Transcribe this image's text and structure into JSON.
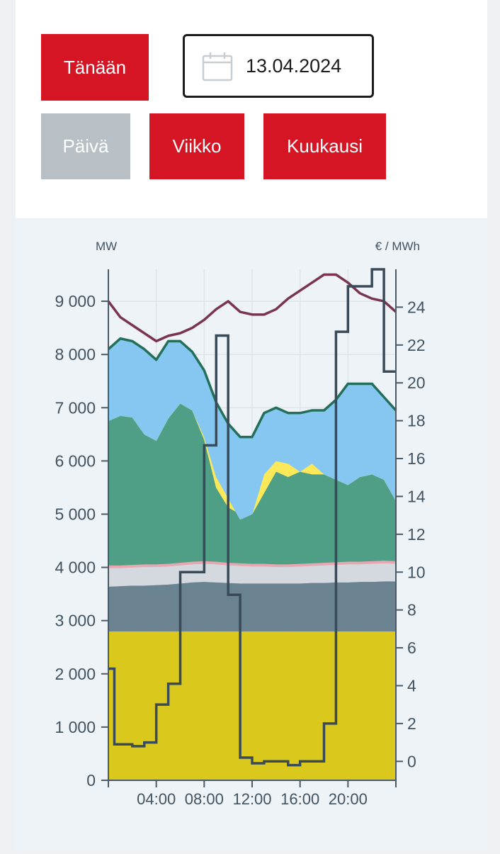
{
  "controls": {
    "today_label": "Tänään",
    "date_value": "13.04.2024",
    "calendar_icon": "calendar-icon",
    "ranges": [
      {
        "label": "Päivä",
        "active": false
      },
      {
        "label": "Viikko",
        "active": true
      },
      {
        "label": "Kuukausi",
        "active": true
      }
    ]
  },
  "colors": {
    "button_red": "#d51523",
    "button_grey": "#b8c0c6",
    "nuclear": "#dbc81c",
    "chp": "#6b8290",
    "industry": "#d3d9de",
    "other": "#e6a7b0",
    "hydro": "#4f9e86",
    "solar": "#fbe95a",
    "wind": "#86c7f2",
    "consumption": "#246f5a",
    "consumption_total": "#7a3453",
    "price": "#394b59"
  },
  "chart_data": {
    "type": "area",
    "left_unit": "MW",
    "right_unit": "€ / MWh",
    "left_ylim": [
      0,
      9600
    ],
    "right_ylim": [
      -1,
      26
    ],
    "left_ticks": [
      "0",
      "1 000",
      "2 000",
      "3 000",
      "4 000",
      "5 000",
      "6 000",
      "7 000",
      "8 000",
      "9 000"
    ],
    "left_tick_values": [
      0,
      1000,
      2000,
      3000,
      4000,
      5000,
      6000,
      7000,
      8000,
      9000
    ],
    "right_ticks": [
      "0",
      "2",
      "4",
      "6",
      "8",
      "10",
      "12",
      "14",
      "16",
      "18",
      "20",
      "22",
      "24"
    ],
    "right_tick_values": [
      0,
      2,
      4,
      6,
      8,
      10,
      12,
      14,
      16,
      18,
      20,
      22,
      24
    ],
    "xlim": [
      0,
      24
    ],
    "x_ticks": [
      "04:00",
      "08:00",
      "12:00",
      "16:00",
      "20:00"
    ],
    "x_tick_values": [
      4,
      8,
      12,
      16,
      20
    ],
    "grid": true,
    "hours": [
      0,
      1,
      2,
      3,
      4,
      5,
      6,
      7,
      8,
      9,
      10,
      11,
      12,
      13,
      14,
      15,
      16,
      17,
      18,
      19,
      20,
      21,
      22,
      23,
      24
    ],
    "stack_series": [
      {
        "key": "nuclear",
        "values": [
          2800,
          2800,
          2800,
          2800,
          2800,
          2800,
          2800,
          2800,
          2800,
          2800,
          2800,
          2800,
          2800,
          2800,
          2800,
          2800,
          2800,
          2800,
          2800,
          2800,
          2800,
          2800,
          2800,
          2800,
          2800
        ]
      },
      {
        "key": "chp",
        "values": [
          3640,
          3650,
          3660,
          3660,
          3670,
          3680,
          3700,
          3720,
          3730,
          3720,
          3710,
          3700,
          3700,
          3700,
          3700,
          3700,
          3700,
          3710,
          3710,
          3720,
          3720,
          3730,
          3730,
          3740,
          3740
        ]
      },
      {
        "key": "industry",
        "values": [
          3990,
          3990,
          4000,
          4010,
          4010,
          4020,
          4040,
          4060,
          4070,
          4060,
          4040,
          4030,
          4020,
          4020,
          4010,
          4010,
          4020,
          4030,
          4040,
          4050,
          4060,
          4060,
          4070,
          4080,
          4070
        ]
      },
      {
        "key": "other",
        "values": [
          4040,
          4040,
          4050,
          4060,
          4060,
          4070,
          4090,
          4110,
          4120,
          4110,
          4090,
          4080,
          4070,
          4070,
          4060,
          4060,
          4070,
          4080,
          4090,
          4100,
          4110,
          4110,
          4120,
          4130,
          4120
        ]
      },
      {
        "key": "hydro",
        "values": [
          6750,
          6850,
          6820,
          6500,
          6380,
          6800,
          7080,
          6950,
          6400,
          5500,
          5130,
          5000,
          5000,
          5400,
          5800,
          5700,
          5800,
          5750,
          5750,
          5650,
          5550,
          5700,
          5750,
          5650,
          5250
        ]
      },
      {
        "key": "solar",
        "values": [
          6750,
          6850,
          6820,
          6500,
          6380,
          6800,
          7080,
          6950,
          6450,
          5700,
          5300,
          4900,
          5000,
          5750,
          6000,
          5950,
          5800,
          5950,
          5750,
          5650,
          5550,
          5700,
          5750,
          5650,
          5250
        ]
      },
      {
        "key": "wind",
        "values": [
          8100,
          8300,
          8250,
          8100,
          7900,
          8250,
          8250,
          8050,
          7700,
          7100,
          6700,
          6450,
          6450,
          6900,
          7000,
          6900,
          6900,
          6950,
          6950,
          7150,
          7450,
          7450,
          7450,
          7200,
          6950
        ]
      }
    ],
    "consumption_line": {
      "key": "consumption",
      "values": [
        8100,
        8300,
        8250,
        8100,
        7900,
        8250,
        8250,
        8050,
        7700,
        7100,
        6700,
        6450,
        6450,
        6900,
        7000,
        6900,
        6900,
        6950,
        6950,
        7150,
        7450,
        7450,
        7450,
        7200,
        6950
      ]
    },
    "total_line": {
      "key": "consumption_total",
      "values": [
        9000,
        8700,
        8550,
        8400,
        8250,
        8350,
        8400,
        8500,
        8650,
        8850,
        9000,
        8800,
        8750,
        8750,
        8850,
        9050,
        9200,
        9350,
        9500,
        9500,
        9350,
        9150,
        9050,
        9000,
        8800
      ]
    },
    "price_steps": [
      {
        "start": 0,
        "end": 0.5,
        "value": 4.9
      },
      {
        "start": 0.5,
        "end": 2,
        "value": 0.9
      },
      {
        "start": 2,
        "end": 3,
        "value": 0.8
      },
      {
        "start": 3,
        "end": 4,
        "value": 1.0
      },
      {
        "start": 4,
        "end": 5,
        "value": 3.0
      },
      {
        "start": 5,
        "end": 6,
        "value": 4.1
      },
      {
        "start": 6,
        "end": 8,
        "value": 10.0
      },
      {
        "start": 8,
        "end": 9,
        "value": 16.7
      },
      {
        "start": 9,
        "end": 10,
        "value": 22.5
      },
      {
        "start": 10,
        "end": 11,
        "value": 8.8
      },
      {
        "start": 11,
        "end": 12,
        "value": 0.2
      },
      {
        "start": 12,
        "end": 13,
        "value": -0.1
      },
      {
        "start": 13,
        "end": 15,
        "value": 0.0
      },
      {
        "start": 15,
        "end": 16,
        "value": -0.2
      },
      {
        "start": 16,
        "end": 18,
        "value": 0.0
      },
      {
        "start": 18,
        "end": 19,
        "value": 2.0
      },
      {
        "start": 19,
        "end": 20,
        "value": 22.7
      },
      {
        "start": 20,
        "end": 22,
        "value": 25.1
      },
      {
        "start": 22,
        "end": 23,
        "value": 26.0
      },
      {
        "start": 23,
        "end": 24,
        "value": 20.6
      }
    ]
  }
}
